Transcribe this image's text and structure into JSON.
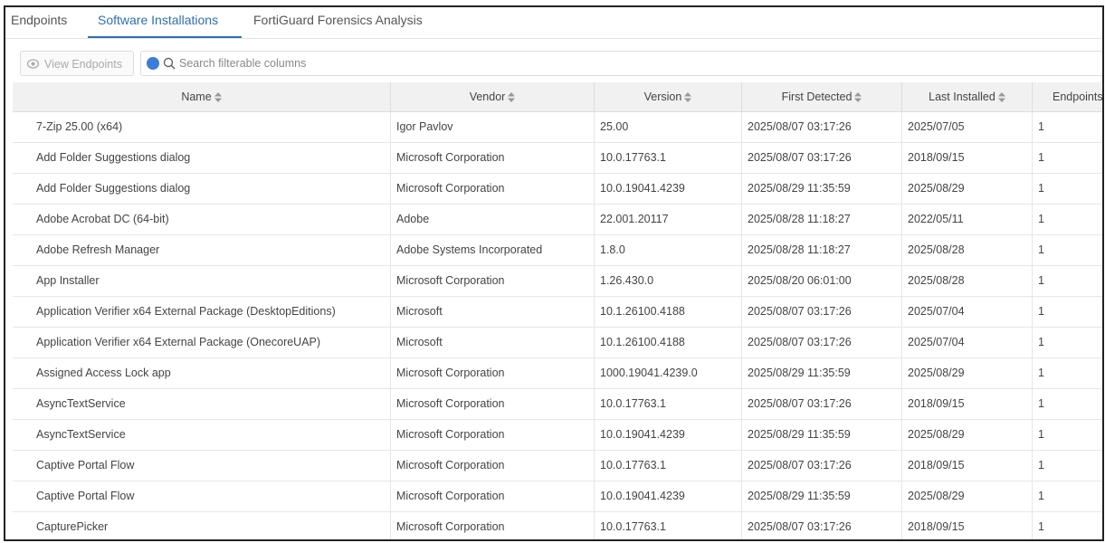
{
  "tabs": [
    "Endpoints",
    "Software Installations",
    "FortiGuard Forensics Analysis"
  ],
  "active_tab": 1,
  "toolbar": {
    "button": "View Endpoints",
    "search_placeholder": "Search filterable columns"
  },
  "table": {
    "columns": [
      "Name",
      "Vendor",
      "Version",
      "First Detected",
      "Last Installed",
      "Endpoints"
    ],
    "rows": [
      [
        "7-Zip 25.00 (x64)",
        "Igor Pavlov",
        "25.00",
        "2025/08/07 03:17:26",
        "2025/07/05",
        1
      ],
      [
        "Add Folder Suggestions dialog",
        "Microsoft Corporation",
        "10.0.17763.1",
        "2025/08/07 03:17:26",
        "2018/09/15",
        1
      ],
      [
        "Add Folder Suggestions dialog",
        "Microsoft Corporation",
        "10.0.19041.4239",
        "2025/08/29 11:35:59",
        "2025/08/29",
        1
      ],
      [
        "Adobe Acrobat DC (64-bit)",
        "Adobe",
        "22.001.20117",
        "2025/08/28 11:18:27",
        "2022/05/11",
        1
      ],
      [
        "Adobe Refresh Manager",
        "Adobe Systems Incorporated",
        "1.8.0",
        "2025/08/28 11:18:27",
        "2025/08/28",
        1
      ],
      [
        "App Installer",
        "Microsoft Corporation",
        "1.26.430.0",
        "2025/08/20 06:01:00",
        "2025/08/28",
        1
      ],
      [
        "Application Verifier x64 External Package (DesktopEditions)",
        "Microsoft",
        "10.1.26100.4188",
        "2025/08/07 03:17:26",
        "2025/07/04",
        1
      ],
      [
        "Application Verifier x64 External Package (OnecoreUAP)",
        "Microsoft",
        "10.1.26100.4188",
        "2025/08/07 03:17:26",
        "2025/07/04",
        1
      ],
      [
        "Assigned Access Lock app",
        "Microsoft Corporation",
        "1000.19041.4239.0",
        "2025/08/29 11:35:59",
        "2025/08/29",
        1
      ],
      [
        "AsyncTextService",
        "Microsoft Corporation",
        "10.0.17763.1",
        "2025/08/07 03:17:26",
        "2018/09/15",
        1
      ],
      [
        "AsyncTextService",
        "Microsoft Corporation",
        "10.0.19041.4239",
        "2025/08/29 11:35:59",
        "2025/08/29",
        1
      ],
      [
        "Captive Portal Flow",
        "Microsoft Corporation",
        "10.0.17763.1",
        "2025/08/07 03:17:26",
        "2018/09/15",
        1
      ],
      [
        "Captive Portal Flow",
        "Microsoft Corporation",
        "10.0.19041.4239",
        "2025/08/29 11:35:59",
        "2025/08/29",
        1
      ],
      [
        "CapturePicker",
        "Microsoft Corporation",
        "10.0.17763.1",
        "2025/08/07 03:17:26",
        "2018/09/15",
        1
      ]
    ]
  }
}
